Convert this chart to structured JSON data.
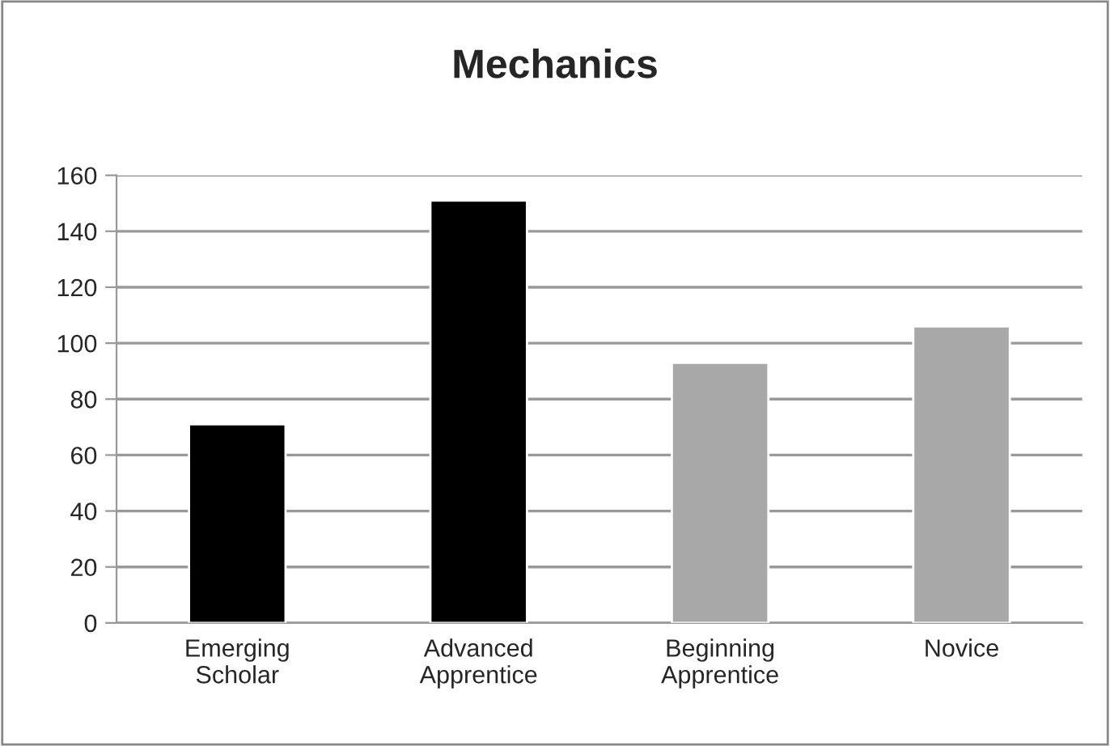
{
  "chart_data": {
    "type": "bar",
    "title": "Mechanics",
    "categories": [
      "Emerging\nScholar",
      "Advanced\nApprentice",
      "Beginning\nApprentice",
      "Novice"
    ],
    "values": [
      71,
      151,
      93,
      106
    ],
    "colors": [
      "#000000",
      "#000000",
      "#a8a8a8",
      "#a8a8a8"
    ],
    "ylim": [
      0,
      160
    ],
    "yticks": [
      0,
      20,
      40,
      60,
      80,
      100,
      120,
      140,
      160
    ],
    "grid": "y",
    "legend": false
  }
}
